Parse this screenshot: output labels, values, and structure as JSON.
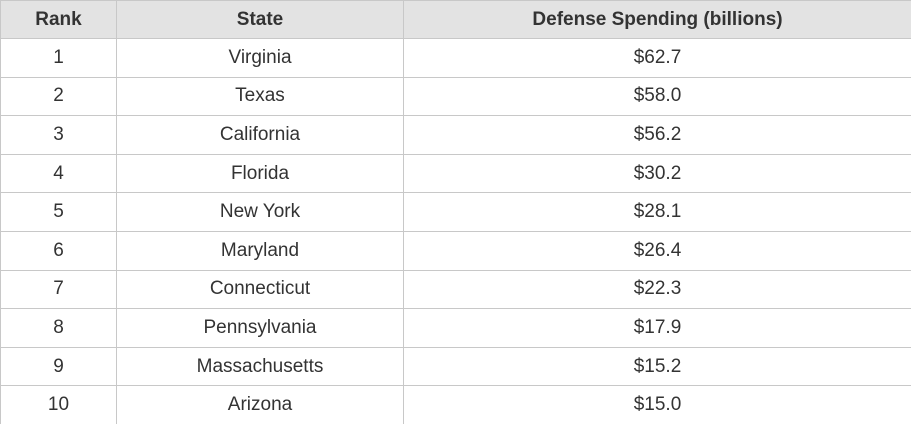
{
  "table": {
    "headers": [
      "Rank",
      "State",
      "Defense Spending (billions)"
    ],
    "rows": [
      [
        "1",
        "Virginia",
        "$62.7"
      ],
      [
        "2",
        "Texas",
        "$58.0"
      ],
      [
        "3",
        "California",
        "$56.2"
      ],
      [
        "4",
        "Florida",
        "$30.2"
      ],
      [
        "5",
        "New York",
        "$28.1"
      ],
      [
        "6",
        "Maryland",
        "$26.4"
      ],
      [
        "7",
        "Connecticut",
        "$22.3"
      ],
      [
        "8",
        "Pennsylvania",
        "$17.9"
      ],
      [
        "9",
        "Massachusetts",
        "$15.2"
      ],
      [
        "10",
        "Arizona",
        "$15.0"
      ]
    ]
  },
  "colors": {
    "header_background": "#e3e3e3",
    "grid_line": "#c8c8c8",
    "text": "#333333"
  }
}
